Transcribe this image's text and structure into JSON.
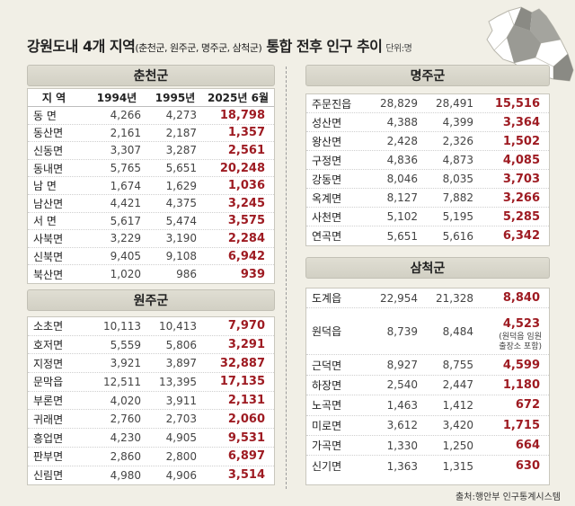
{
  "title": {
    "main_prefix": "강원도내 4개 지역",
    "sub": "(춘천군, 원주군, 명주군, 삼척군)",
    "main_suffix": " 통합 전후 인구 추이",
    "unit": "단위:명"
  },
  "map_icon": "gangwon-map-icon",
  "colors": {
    "accent": "#9e1b22",
    "background": "#f1efe6"
  },
  "headers": {
    "region": "지  역",
    "y1994": "1994년",
    "y1995": "1995년",
    "y2025": "2025년 6월"
  },
  "chuncheon": {
    "name": "춘천군",
    "rows": [
      {
        "name": "동  면",
        "y1994": "4,266",
        "y1995": "4,273",
        "y2025": "18,798"
      },
      {
        "name": "동산면",
        "y1994": "2,161",
        "y1995": "2,187",
        "y2025": "1,357"
      },
      {
        "name": "신동면",
        "y1994": "3,307",
        "y1995": "3,287",
        "y2025": "2,561"
      },
      {
        "name": "동내면",
        "y1994": "5,765",
        "y1995": "5,651",
        "y2025": "20,248"
      },
      {
        "name": "남  면",
        "y1994": "1,674",
        "y1995": "1,629",
        "y2025": "1,036"
      },
      {
        "name": "남산면",
        "y1994": "4,421",
        "y1995": "4,375",
        "y2025": "3,245"
      },
      {
        "name": "서  면",
        "y1994": "5,617",
        "y1995": "5,474",
        "y2025": "3,575"
      },
      {
        "name": "사북면",
        "y1994": "3,229",
        "y1995": "3,190",
        "y2025": "2,284"
      },
      {
        "name": "신북면",
        "y1994": "9,405",
        "y1995": "9,108",
        "y2025": "6,942"
      },
      {
        "name": "북산면",
        "y1994": "1,020",
        "y1995": "986",
        "y2025": "939"
      }
    ]
  },
  "wonju": {
    "name": "원주군",
    "rows": [
      {
        "name": "소초면",
        "y1994": "10,113",
        "y1995": "10,413",
        "y2025": "7,970"
      },
      {
        "name": "호저면",
        "y1994": "5,559",
        "y1995": "5,806",
        "y2025": "3,291"
      },
      {
        "name": "지정면",
        "y1994": "3,921",
        "y1995": "3,897",
        "y2025": "32,887"
      },
      {
        "name": "문막읍",
        "y1994": "12,511",
        "y1995": "13,395",
        "y2025": "17,135"
      },
      {
        "name": "부론면",
        "y1994": "4,020",
        "y1995": "3,911",
        "y2025": "2,131"
      },
      {
        "name": "귀래면",
        "y1994": "2,760",
        "y1995": "2,703",
        "y2025": "2,060"
      },
      {
        "name": "흥업면",
        "y1994": "4,230",
        "y1995": "4,905",
        "y2025": "9,531"
      },
      {
        "name": "판부면",
        "y1994": "2,860",
        "y1995": "2,800",
        "y2025": "6,897"
      },
      {
        "name": "신림면",
        "y1994": "4,980",
        "y1995": "4,906",
        "y2025": "3,514"
      }
    ]
  },
  "myeongju": {
    "name": "명주군",
    "rows": [
      {
        "name": "주문진읍",
        "y1994": "28,829",
        "y1995": "28,491",
        "y2025": "15,516"
      },
      {
        "name": "성산면",
        "y1994": "4,388",
        "y1995": "4,399",
        "y2025": "3,364"
      },
      {
        "name": "왕산면",
        "y1994": "2,428",
        "y1995": "2,326",
        "y2025": "1,502"
      },
      {
        "name": "구정면",
        "y1994": "4,836",
        "y1995": "4,873",
        "y2025": "4,085"
      },
      {
        "name": "강동면",
        "y1994": "8,046",
        "y1995": "8,035",
        "y2025": "3,703"
      },
      {
        "name": "옥계면",
        "y1994": "8,127",
        "y1995": "7,882",
        "y2025": "3,266"
      },
      {
        "name": "사천면",
        "y1994": "5,102",
        "y1995": "5,195",
        "y2025": "5,285"
      },
      {
        "name": "연곡면",
        "y1994": "5,651",
        "y1995": "5,616",
        "y2025": "6,342"
      }
    ]
  },
  "samcheok": {
    "name": "삼척군",
    "rows": [
      {
        "name": "도계읍",
        "y1994": "22,954",
        "y1995": "21,328",
        "y2025": "8,840"
      },
      {
        "name": "원덕읍",
        "y1994": "8,739",
        "y1995": "8,484",
        "y2025": "4,523",
        "note1": "(원덕읍 임원",
        "note2": "출장소 포함)"
      },
      {
        "name": "근덕면",
        "y1994": "8,927",
        "y1995": "8,755",
        "y2025": "4,599"
      },
      {
        "name": "하장면",
        "y1994": "2,540",
        "y1995": "2,447",
        "y2025": "1,180"
      },
      {
        "name": "노곡면",
        "y1994": "1,463",
        "y1995": "1,412",
        "y2025": "672"
      },
      {
        "name": "미로면",
        "y1994": "3,612",
        "y1995": "3,420",
        "y2025": "1,715"
      },
      {
        "name": "가곡면",
        "y1994": "1,330",
        "y1995": "1,250",
        "y2025": "664"
      },
      {
        "name": "신기면",
        "y1994": "1,363",
        "y1995": "1,315",
        "y2025": "630"
      }
    ]
  },
  "source": "출처:행안부 인구통계시스템"
}
